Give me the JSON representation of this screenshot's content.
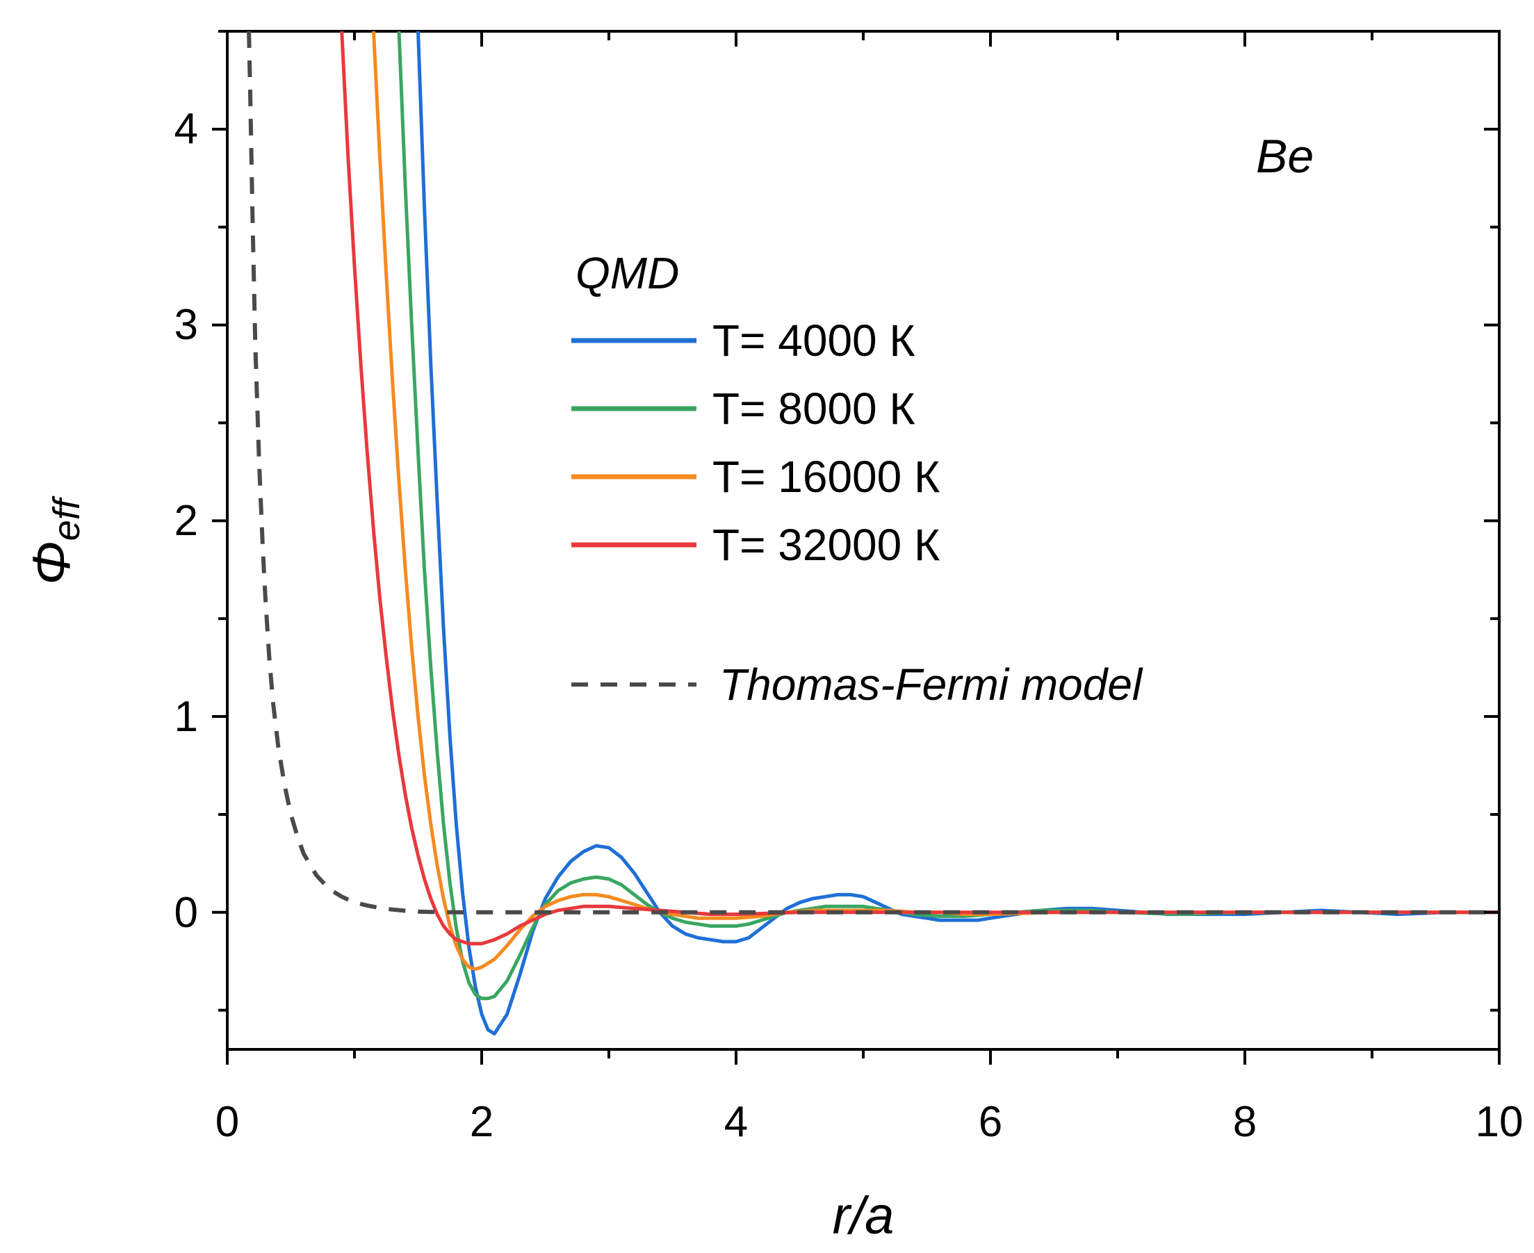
{
  "chart_data": {
    "type": "line",
    "title": "",
    "annotation": "Be",
    "xlabel": "r/a",
    "ylabel": {
      "base": "Φ",
      "sub": "eff"
    },
    "xlim": [
      0,
      10
    ],
    "ylim": [
      -0.7,
      4.5
    ],
    "xticks": [
      0,
      2,
      4,
      6,
      8,
      10
    ],
    "xtick_labels": [
      "0",
      "2",
      "4",
      "6",
      "8",
      "10"
    ],
    "yticks": [
      0,
      1,
      2,
      3,
      4
    ],
    "ytick_labels": [
      "0",
      "1",
      "2",
      "3",
      "4"
    ],
    "legend_title": "QMD",
    "legend_position": "top-right",
    "series": [
      {
        "name": "T= 4000 К",
        "color": "#1f6fd6",
        "dash": "solid",
        "x": [
          1.5,
          1.55,
          1.6,
          1.65,
          1.7,
          1.75,
          1.8,
          1.85,
          1.9,
          1.95,
          2.0,
          2.05,
          2.1,
          2.2,
          2.3,
          2.4,
          2.5,
          2.6,
          2.7,
          2.8,
          2.9,
          3.0,
          3.1,
          3.2,
          3.3,
          3.4,
          3.5,
          3.6,
          3.7,
          3.8,
          3.9,
          4.0,
          4.1,
          4.2,
          4.3,
          4.4,
          4.5,
          4.6,
          4.7,
          4.8,
          4.9,
          5.0,
          5.1,
          5.2,
          5.3,
          5.4,
          5.5,
          5.6,
          5.7,
          5.8,
          5.9,
          6.0,
          6.2,
          6.4,
          6.6,
          6.8,
          7.0,
          7.2,
          7.4,
          7.6,
          7.8,
          8.0,
          8.3,
          8.6,
          8.9,
          9.2,
          9.6,
          10.0
        ],
        "y": [
          4.5,
          3.6,
          2.8,
          2.1,
          1.45,
          0.9,
          0.45,
          0.1,
          -0.18,
          -0.38,
          -0.52,
          -0.6,
          -0.62,
          -0.52,
          -0.32,
          -0.1,
          0.07,
          0.18,
          0.26,
          0.31,
          0.34,
          0.33,
          0.28,
          0.2,
          0.1,
          0.0,
          -0.07,
          -0.11,
          -0.13,
          -0.14,
          -0.15,
          -0.15,
          -0.13,
          -0.08,
          -0.03,
          0.02,
          0.05,
          0.07,
          0.08,
          0.09,
          0.09,
          0.08,
          0.05,
          0.02,
          -0.01,
          -0.02,
          -0.03,
          -0.04,
          -0.04,
          -0.04,
          -0.04,
          -0.03,
          -0.01,
          0.01,
          0.02,
          0.02,
          0.01,
          0.0,
          -0.01,
          -0.01,
          -0.01,
          -0.01,
          0.0,
          0.01,
          0.0,
          -0.01,
          0.0,
          0.0
        ]
      },
      {
        "name": "T= 8000 К",
        "color": "#3aa661",
        "dash": "solid",
        "x": [
          1.35,
          1.4,
          1.45,
          1.5,
          1.55,
          1.6,
          1.65,
          1.7,
          1.75,
          1.8,
          1.85,
          1.9,
          1.95,
          2.0,
          2.05,
          2.1,
          2.2,
          2.3,
          2.4,
          2.5,
          2.6,
          2.7,
          2.8,
          2.9,
          3.0,
          3.1,
          3.2,
          3.3,
          3.4,
          3.5,
          3.6,
          3.7,
          3.8,
          3.9,
          4.0,
          4.1,
          4.2,
          4.3,
          4.4,
          4.5,
          4.6,
          4.7,
          4.8,
          4.9,
          5.0,
          5.1,
          5.2,
          5.3,
          5.4,
          5.6,
          5.8,
          6.0,
          6.2,
          6.4,
          6.6,
          6.8,
          7.0,
          7.5,
          8.0,
          8.5,
          9.0,
          10.0
        ],
        "y": [
          4.5,
          3.7,
          3.0,
          2.35,
          1.75,
          1.25,
          0.82,
          0.45,
          0.15,
          -0.08,
          -0.25,
          -0.36,
          -0.42,
          -0.44,
          -0.44,
          -0.43,
          -0.35,
          -0.22,
          -0.08,
          0.04,
          0.11,
          0.15,
          0.17,
          0.18,
          0.17,
          0.14,
          0.09,
          0.04,
          0.0,
          -0.03,
          -0.05,
          -0.06,
          -0.07,
          -0.07,
          -0.07,
          -0.06,
          -0.04,
          -0.02,
          0.0,
          0.01,
          0.02,
          0.03,
          0.03,
          0.03,
          0.03,
          0.02,
          0.01,
          0.0,
          -0.01,
          -0.02,
          -0.02,
          -0.01,
          0.0,
          0.01,
          0.01,
          0.01,
          0.0,
          -0.01,
          0.0,
          0.0,
          0.0,
          0.0
        ]
      },
      {
        "name": "T= 16000 К",
        "color": "#f58a1f",
        "dash": "solid",
        "x": [
          1.15,
          1.2,
          1.25,
          1.3,
          1.35,
          1.4,
          1.45,
          1.5,
          1.55,
          1.6,
          1.65,
          1.7,
          1.75,
          1.8,
          1.85,
          1.9,
          1.95,
          2.0,
          2.1,
          2.2,
          2.3,
          2.4,
          2.5,
          2.6,
          2.7,
          2.8,
          2.9,
          3.0,
          3.1,
          3.2,
          3.3,
          3.4,
          3.5,
          3.6,
          3.7,
          3.8,
          3.9,
          4.0,
          4.2,
          4.4,
          4.6,
          4.8,
          5.0,
          5.2,
          5.4,
          5.6,
          5.8,
          6.0,
          6.5,
          7.0,
          8.0,
          9.0,
          10.0
        ],
        "y": [
          4.5,
          3.85,
          3.25,
          2.7,
          2.2,
          1.75,
          1.35,
          1.0,
          0.7,
          0.45,
          0.24,
          0.07,
          -0.07,
          -0.17,
          -0.24,
          -0.28,
          -0.29,
          -0.28,
          -0.24,
          -0.17,
          -0.09,
          -0.02,
          0.03,
          0.06,
          0.08,
          0.09,
          0.09,
          0.08,
          0.06,
          0.04,
          0.02,
          0.0,
          -0.01,
          -0.02,
          -0.03,
          -0.03,
          -0.03,
          -0.03,
          -0.02,
          0.0,
          0.01,
          0.01,
          0.01,
          0.01,
          0.0,
          0.0,
          -0.01,
          -0.01,
          0.0,
          0.0,
          0.0,
          0.0,
          0.0
        ]
      },
      {
        "name": "T= 32000 К",
        "color": "#e8393c",
        "dash": "solid",
        "x": [
          0.9,
          0.95,
          1.0,
          1.05,
          1.1,
          1.15,
          1.2,
          1.25,
          1.3,
          1.35,
          1.4,
          1.45,
          1.5,
          1.55,
          1.6,
          1.65,
          1.7,
          1.75,
          1.8,
          1.85,
          1.9,
          2.0,
          2.1,
          2.2,
          2.3,
          2.4,
          2.5,
          2.6,
          2.7,
          2.8,
          2.9,
          3.0,
          3.2,
          3.4,
          3.6,
          3.8,
          4.0,
          4.5,
          5.0,
          5.5,
          6.0,
          7.0,
          8.0,
          9.0,
          10.0
        ],
        "y": [
          4.5,
          3.85,
          3.3,
          2.8,
          2.35,
          1.95,
          1.6,
          1.3,
          1.03,
          0.8,
          0.6,
          0.43,
          0.29,
          0.17,
          0.07,
          -0.01,
          -0.07,
          -0.11,
          -0.14,
          -0.15,
          -0.16,
          -0.16,
          -0.14,
          -0.11,
          -0.07,
          -0.04,
          -0.01,
          0.01,
          0.02,
          0.03,
          0.03,
          0.03,
          0.02,
          0.01,
          0.0,
          -0.01,
          -0.01,
          0.0,
          0.0,
          0.0,
          0.0,
          0.0,
          0.0,
          0.0,
          0.0
        ]
      },
      {
        "name": "Thomas-Fermi model",
        "color": "#4a4a4a",
        "dash": "dashed",
        "x": [
          0.17,
          0.18,
          0.2,
          0.22,
          0.25,
          0.28,
          0.3,
          0.33,
          0.36,
          0.4,
          0.45,
          0.5,
          0.55,
          0.6,
          0.7,
          0.8,
          0.9,
          1.0,
          1.1,
          1.2,
          1.3,
          1.4,
          1.5,
          1.6,
          1.8,
          2.0,
          2.5,
          3.0,
          4.0,
          5.0,
          6.0,
          8.0,
          10.0
        ],
        "y": [
          4.5,
          4.2,
          3.5,
          2.9,
          2.3,
          1.85,
          1.6,
          1.3,
          1.07,
          0.85,
          0.65,
          0.5,
          0.39,
          0.3,
          0.19,
          0.12,
          0.08,
          0.05,
          0.035,
          0.022,
          0.014,
          0.008,
          0.004,
          0.002,
          0.0,
          0.0,
          0.0,
          0.0,
          0.0,
          0.0,
          0.0,
          0.0,
          0.0
        ]
      }
    ]
  }
}
